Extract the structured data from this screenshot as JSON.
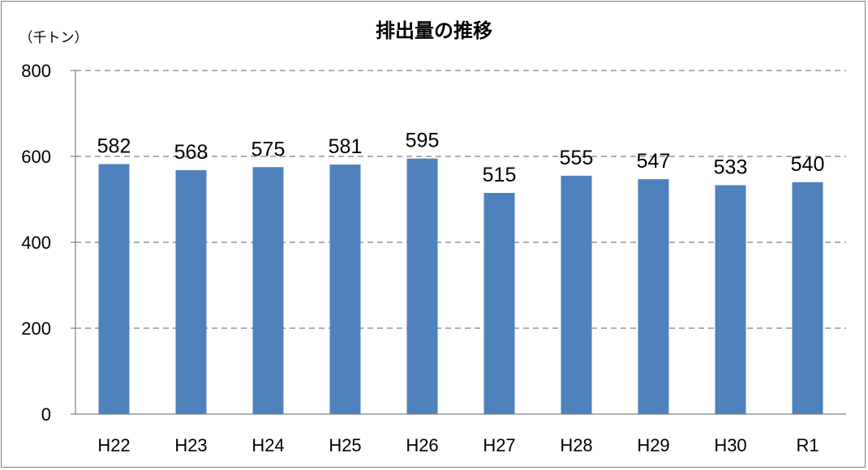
{
  "chart_data": {
    "type": "bar",
    "title": "排出量の推移",
    "ylabel": "（千トン）",
    "xlabel": "",
    "categories": [
      "H22",
      "H23",
      "H24",
      "H25",
      "H26",
      "H27",
      "H28",
      "H29",
      "H30",
      "R1"
    ],
    "values": [
      582,
      568,
      575,
      581,
      595,
      515,
      555,
      547,
      533,
      540
    ],
    "data_labels": [
      "582",
      "568",
      "575",
      "581",
      "595",
      "515",
      "555",
      "547",
      "533",
      "540"
    ],
    "ylim": [
      0,
      800
    ],
    "yticks": [
      0,
      200,
      400,
      600,
      800
    ],
    "ytick_labels": [
      "0",
      "200",
      "400",
      "600",
      "800"
    ],
    "grid": true,
    "legend": "none",
    "bar_color": "#4f81bd",
    "grid_color": "#808080"
  }
}
